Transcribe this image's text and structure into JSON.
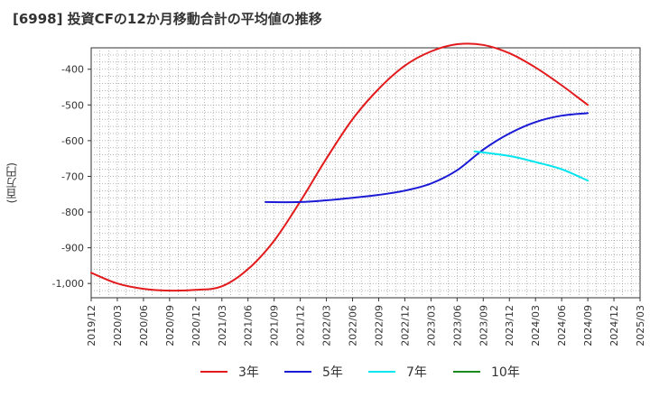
{
  "title": "[6998]  投資CFの12か月移動合計の平均値の推移",
  "ylabel": "(百万円)",
  "chart_data": {
    "type": "line",
    "title": "[6998]  投資CFの12か月移動合計の平均値の推移",
    "ylabel": "(百万円)",
    "xlabel": "",
    "ylim": [
      -1040,
      -340
    ],
    "xlim": [
      "2019-12",
      "2025-03"
    ],
    "grid": true,
    "legend_position": "bottom",
    "y_ticks": [
      -400,
      -500,
      -600,
      -700,
      -800,
      -900,
      -1000
    ],
    "y_tick_labels": [
      "-400",
      "-500",
      "-600",
      "-700",
      "-800",
      "-900",
      "-1,000"
    ],
    "x_ticks": [
      "2019/12",
      "2020/03",
      "2020/06",
      "2020/09",
      "2020/12",
      "2021/03",
      "2021/06",
      "2021/09",
      "2021/12",
      "2022/03",
      "2022/06",
      "2022/09",
      "2022/12",
      "2023/03",
      "2023/06",
      "2023/09",
      "2023/12",
      "2024/03",
      "2024/06",
      "2024/09",
      "2024/12",
      "2025/03"
    ],
    "series": [
      {
        "name": "3年",
        "color": "#e31a1c",
        "points": [
          [
            "2019-12",
            -970
          ],
          [
            "2020-03",
            -1000
          ],
          [
            "2020-06",
            -1015
          ],
          [
            "2020-09",
            -1020
          ],
          [
            "2020-12",
            -1018
          ],
          [
            "2021-03",
            -1008
          ],
          [
            "2021-06",
            -960
          ],
          [
            "2021-09",
            -880
          ],
          [
            "2021-12",
            -770
          ],
          [
            "2022-03",
            -650
          ],
          [
            "2022-06",
            -540
          ],
          [
            "2022-09",
            -455
          ],
          [
            "2022-12",
            -390
          ],
          [
            "2023-03",
            -350
          ],
          [
            "2023-06",
            -330
          ],
          [
            "2023-09",
            -332
          ],
          [
            "2023-12",
            -355
          ],
          [
            "2024-03",
            -395
          ],
          [
            "2024-06",
            -445
          ],
          [
            "2024-09",
            -500
          ]
        ]
      },
      {
        "name": "5年",
        "color": "#1a1ad6",
        "points": [
          [
            "2021-08",
            -772
          ],
          [
            "2021-12",
            -772
          ],
          [
            "2022-03",
            -767
          ],
          [
            "2022-06",
            -760
          ],
          [
            "2022-09",
            -752
          ],
          [
            "2022-12",
            -740
          ],
          [
            "2023-03",
            -720
          ],
          [
            "2023-06",
            -683
          ],
          [
            "2023-09",
            -625
          ],
          [
            "2023-12",
            -580
          ],
          [
            "2024-03",
            -548
          ],
          [
            "2024-06",
            -530
          ],
          [
            "2024-09",
            -523
          ]
        ]
      },
      {
        "name": "7年",
        "color": "#00e5ee",
        "points": [
          [
            "2023-08",
            -630
          ],
          [
            "2023-12",
            -643
          ],
          [
            "2024-03",
            -660
          ],
          [
            "2024-06",
            -680
          ],
          [
            "2024-09",
            -712
          ]
        ]
      },
      {
        "name": "10年",
        "color": "#1a8a1a",
        "points": []
      }
    ]
  }
}
